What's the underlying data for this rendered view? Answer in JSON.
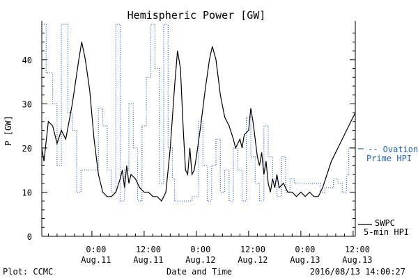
{
  "chart_data": {
    "type": "line",
    "title": "Hemispheric Power [GW]",
    "xlabel": "Date and Time",
    "ylabel": "P [GW]",
    "ylim": [
      0,
      48
    ],
    "yticks": [
      0,
      10,
      20,
      30,
      40
    ],
    "xlim": [
      "2016-08-10 12:30",
      "2016-08-13 12:30"
    ],
    "xticks": [
      {
        "t": "2016-08-11 00:00",
        "time": "0:00",
        "date": "Aug.11"
      },
      {
        "t": "2016-08-11 12:00",
        "time": "12:00",
        "date": "Aug.11"
      },
      {
        "t": "2016-08-12 00:00",
        "time": "0:00",
        "date": "Aug.12"
      },
      {
        "t": "2016-08-12 12:00",
        "time": "12:00",
        "date": "Aug.12"
      },
      {
        "t": "2016-08-13 00:00",
        "time": "0:00",
        "date": "Aug.13"
      },
      {
        "t": "2016-08-13 12:00",
        "time": "12:00",
        "date": "Aug.13"
      }
    ],
    "grid": false,
    "colors": {
      "swpc": "#000000",
      "ovation": "#1f5fd6"
    },
    "legend": [
      {
        "series": "swpc",
        "line1": "SWPC",
        "line2": "5-min HPI"
      },
      {
        "series": "ovation",
        "line1": "-- Ovation",
        "line2": "Prime HPI"
      }
    ],
    "series": [
      {
        "key": "swpc",
        "style": "solid",
        "points": [
          [
            "2016-08-10 12:30",
            20
          ],
          [
            "2016-08-10 13:00",
            17
          ],
          [
            "2016-08-10 14:00",
            26
          ],
          [
            "2016-08-10 15:00",
            25
          ],
          [
            "2016-08-10 16:00",
            21
          ],
          [
            "2016-08-10 17:00",
            24
          ],
          [
            "2016-08-10 18:00",
            22
          ],
          [
            "2016-08-10 19:30",
            30
          ],
          [
            "2016-08-10 21:00",
            40
          ],
          [
            "2016-08-10 21:40",
            44
          ],
          [
            "2016-08-10 22:30",
            40
          ],
          [
            "2016-08-10 23:30",
            33
          ],
          [
            "2016-08-11 00:30",
            22
          ],
          [
            "2016-08-11 01:30",
            14
          ],
          [
            "2016-08-11 02:30",
            10
          ],
          [
            "2016-08-11 03:30",
            9
          ],
          [
            "2016-08-11 04:30",
            9
          ],
          [
            "2016-08-11 05:30",
            10
          ],
          [
            "2016-08-11 06:30",
            13
          ],
          [
            "2016-08-11 07:00",
            15
          ],
          [
            "2016-08-11 07:30",
            11
          ],
          [
            "2016-08-11 08:00",
            16
          ],
          [
            "2016-08-11 08:30",
            12
          ],
          [
            "2016-08-11 09:00",
            14
          ],
          [
            "2016-08-11 10:00",
            13
          ],
          [
            "2016-08-11 11:00",
            11
          ],
          [
            "2016-08-11 12:00",
            10
          ],
          [
            "2016-08-11 13:00",
            10
          ],
          [
            "2016-08-11 14:00",
            9
          ],
          [
            "2016-08-11 15:00",
            9
          ],
          [
            "2016-08-11 16:00",
            8
          ],
          [
            "2016-08-11 17:00",
            10
          ],
          [
            "2016-08-11 18:00",
            20
          ],
          [
            "2016-08-11 19:00",
            34
          ],
          [
            "2016-08-11 19:40",
            42
          ],
          [
            "2016-08-11 20:20",
            38
          ],
          [
            "2016-08-11 21:00",
            24
          ],
          [
            "2016-08-11 21:30",
            15
          ],
          [
            "2016-08-11 22:00",
            14
          ],
          [
            "2016-08-11 22:30",
            20
          ],
          [
            "2016-08-11 23:00",
            14
          ],
          [
            "2016-08-11 23:30",
            15
          ],
          [
            "2016-08-12 00:00",
            18
          ],
          [
            "2016-08-12 01:00",
            25
          ],
          [
            "2016-08-12 02:00",
            33
          ],
          [
            "2016-08-12 03:00",
            40
          ],
          [
            "2016-08-12 03:40",
            43
          ],
          [
            "2016-08-12 04:30",
            40
          ],
          [
            "2016-08-12 05:30",
            32
          ],
          [
            "2016-08-12 06:30",
            27
          ],
          [
            "2016-08-12 07:30",
            25
          ],
          [
            "2016-08-12 08:30",
            22
          ],
          [
            "2016-08-12 09:00",
            20
          ],
          [
            "2016-08-12 09:30",
            21
          ],
          [
            "2016-08-12 10:00",
            22
          ],
          [
            "2016-08-12 10:30",
            20
          ],
          [
            "2016-08-12 11:00",
            23
          ],
          [
            "2016-08-12 12:00",
            24
          ],
          [
            "2016-08-12 12:30",
            29
          ],
          [
            "2016-08-12 13:00",
            26
          ],
          [
            "2016-08-12 13:30",
            22
          ],
          [
            "2016-08-12 14:00",
            18
          ],
          [
            "2016-08-12 14:30",
            16
          ],
          [
            "2016-08-12 15:00",
            19
          ],
          [
            "2016-08-12 15:30",
            14
          ],
          [
            "2016-08-12 16:00",
            17
          ],
          [
            "2016-08-12 16:30",
            12
          ],
          [
            "2016-08-12 17:00",
            10
          ],
          [
            "2016-08-12 17:30",
            13
          ],
          [
            "2016-08-12 18:00",
            11
          ],
          [
            "2016-08-12 18:30",
            14
          ],
          [
            "2016-08-12 19:00",
            11
          ],
          [
            "2016-08-12 20:00",
            12
          ],
          [
            "2016-08-12 21:00",
            10
          ],
          [
            "2016-08-12 22:00",
            10
          ],
          [
            "2016-08-12 23:00",
            9
          ],
          [
            "2016-08-13 00:00",
            10
          ],
          [
            "2016-08-13 01:00",
            9
          ],
          [
            "2016-08-13 02:00",
            10
          ],
          [
            "2016-08-13 03:00",
            9
          ],
          [
            "2016-08-13 04:00",
            9
          ],
          [
            "2016-08-13 05:00",
            11
          ],
          [
            "2016-08-13 06:00",
            14
          ],
          [
            "2016-08-13 07:00",
            17
          ],
          [
            "2016-08-13 08:00",
            19
          ],
          [
            "2016-08-13 09:00",
            21
          ],
          [
            "2016-08-13 10:00",
            23
          ],
          [
            "2016-08-13 11:00",
            25
          ],
          [
            "2016-08-13 12:00",
            27
          ],
          [
            "2016-08-13 12:30",
            28
          ]
        ]
      },
      {
        "key": "ovation",
        "style": "dotted",
        "points": [
          [
            "2016-08-10 12:30",
            48
          ],
          [
            "2016-08-10 13:30",
            48
          ],
          [
            "2016-08-10 13:30",
            37
          ],
          [
            "2016-08-10 15:00",
            37
          ],
          [
            "2016-08-10 15:00",
            30
          ],
          [
            "2016-08-10 16:00",
            30
          ],
          [
            "2016-08-10 16:00",
            16
          ],
          [
            "2016-08-10 17:00",
            16
          ],
          [
            "2016-08-10 17:00",
            48
          ],
          [
            "2016-08-10 18:30",
            48
          ],
          [
            "2016-08-10 18:30",
            28
          ],
          [
            "2016-08-10 19:30",
            28
          ],
          [
            "2016-08-10 19:30",
            24
          ],
          [
            "2016-08-10 20:30",
            24
          ],
          [
            "2016-08-10 20:30",
            10
          ],
          [
            "2016-08-10 21:30",
            10
          ],
          [
            "2016-08-10 21:30",
            15
          ],
          [
            "2016-08-11 01:30",
            15
          ],
          [
            "2016-08-11 01:30",
            29
          ],
          [
            "2016-08-11 02:30",
            29
          ],
          [
            "2016-08-11 02:30",
            25
          ],
          [
            "2016-08-11 03:30",
            25
          ],
          [
            "2016-08-11 03:30",
            15
          ],
          [
            "2016-08-11 04:30",
            15
          ],
          [
            "2016-08-11 04:30",
            10
          ],
          [
            "2016-08-11 05:30",
            10
          ],
          [
            "2016-08-11 05:30",
            48
          ],
          [
            "2016-08-11 06:30",
            48
          ],
          [
            "2016-08-11 06:30",
            8
          ],
          [
            "2016-08-11 07:30",
            8
          ],
          [
            "2016-08-11 07:30",
            15
          ],
          [
            "2016-08-11 08:30",
            15
          ],
          [
            "2016-08-11 08:30",
            30
          ],
          [
            "2016-08-11 09:30",
            30
          ],
          [
            "2016-08-11 09:30",
            20
          ],
          [
            "2016-08-11 10:30",
            20
          ],
          [
            "2016-08-11 10:30",
            8
          ],
          [
            "2016-08-11 11:30",
            8
          ],
          [
            "2016-08-11 11:30",
            25
          ],
          [
            "2016-08-11 12:30",
            25
          ],
          [
            "2016-08-11 12:30",
            36
          ],
          [
            "2016-08-11 13:30",
            36
          ],
          [
            "2016-08-11 13:30",
            48
          ],
          [
            "2016-08-11 14:30",
            48
          ],
          [
            "2016-08-11 14:30",
            38
          ],
          [
            "2016-08-11 15:30",
            38
          ],
          [
            "2016-08-11 15:30",
            12
          ],
          [
            "2016-08-11 16:30",
            12
          ],
          [
            "2016-08-11 16:30",
            48
          ],
          [
            "2016-08-11 17:30",
            48
          ],
          [
            "2016-08-11 17:30",
            20
          ],
          [
            "2016-08-11 18:30",
            20
          ],
          [
            "2016-08-11 18:30",
            13
          ],
          [
            "2016-08-11 19:00",
            13
          ],
          [
            "2016-08-11 19:00",
            8
          ],
          [
            "2016-08-11 23:00",
            8
          ],
          [
            "2016-08-11 23:00",
            9
          ],
          [
            "2016-08-12 00:30",
            9
          ],
          [
            "2016-08-12 00:30",
            26
          ],
          [
            "2016-08-12 01:30",
            26
          ],
          [
            "2016-08-12 01:30",
            16
          ],
          [
            "2016-08-12 02:30",
            16
          ],
          [
            "2016-08-12 02:30",
            8
          ],
          [
            "2016-08-12 03:30",
            8
          ],
          [
            "2016-08-12 03:30",
            16
          ],
          [
            "2016-08-12 04:30",
            16
          ],
          [
            "2016-08-12 04:30",
            22
          ],
          [
            "2016-08-12 05:30",
            22
          ],
          [
            "2016-08-12 05:30",
            10
          ],
          [
            "2016-08-12 06:30",
            10
          ],
          [
            "2016-08-12 06:30",
            15
          ],
          [
            "2016-08-12 07:30",
            15
          ],
          [
            "2016-08-12 07:30",
            8
          ],
          [
            "2016-08-12 08:30",
            8
          ],
          [
            "2016-08-12 08:30",
            20
          ],
          [
            "2016-08-12 09:30",
            20
          ],
          [
            "2016-08-12 09:30",
            15
          ],
          [
            "2016-08-12 10:30",
            15
          ],
          [
            "2016-08-12 10:30",
            8
          ],
          [
            "2016-08-12 11:30",
            8
          ],
          [
            "2016-08-12 11:30",
            27
          ],
          [
            "2016-08-12 12:30",
            27
          ],
          [
            "2016-08-12 12:30",
            18
          ],
          [
            "2016-08-12 13:30",
            18
          ],
          [
            "2016-08-12 13:30",
            12
          ],
          [
            "2016-08-12 14:30",
            12
          ],
          [
            "2016-08-12 14:30",
            8
          ],
          [
            "2016-08-12 15:30",
            8
          ],
          [
            "2016-08-12 15:30",
            25
          ],
          [
            "2016-08-12 16:30",
            25
          ],
          [
            "2016-08-12 16:30",
            18
          ],
          [
            "2016-08-12 17:30",
            18
          ],
          [
            "2016-08-12 17:30",
            13
          ],
          [
            "2016-08-12 18:30",
            13
          ],
          [
            "2016-08-12 18:30",
            9
          ],
          [
            "2016-08-12 19:30",
            9
          ],
          [
            "2016-08-12 19:30",
            18
          ],
          [
            "2016-08-12 20:30",
            18
          ],
          [
            "2016-08-12 20:30",
            10
          ],
          [
            "2016-08-12 21:30",
            10
          ],
          [
            "2016-08-12 21:30",
            13
          ],
          [
            "2016-08-12 22:30",
            13
          ],
          [
            "2016-08-12 22:30",
            12
          ],
          [
            "2016-08-13 04:30",
            12
          ],
          [
            "2016-08-13 04:30",
            10
          ],
          [
            "2016-08-13 05:30",
            10
          ],
          [
            "2016-08-13 05:30",
            11
          ],
          [
            "2016-08-13 07:30",
            11
          ],
          [
            "2016-08-13 07:30",
            13
          ],
          [
            "2016-08-13 08:30",
            13
          ],
          [
            "2016-08-13 08:30",
            12
          ],
          [
            "2016-08-13 09:30",
            12
          ],
          [
            "2016-08-13 09:30",
            10
          ],
          [
            "2016-08-13 10:30",
            10
          ],
          [
            "2016-08-13 10:30",
            14
          ],
          [
            "2016-08-13 11:00",
            14
          ],
          [
            "2016-08-13 11:00",
            20
          ],
          [
            "2016-08-13 12:30",
            20
          ]
        ]
      }
    ]
  },
  "footer": {
    "left": "Plot: CCMC",
    "right": "2016/08/13 14:00:27"
  }
}
